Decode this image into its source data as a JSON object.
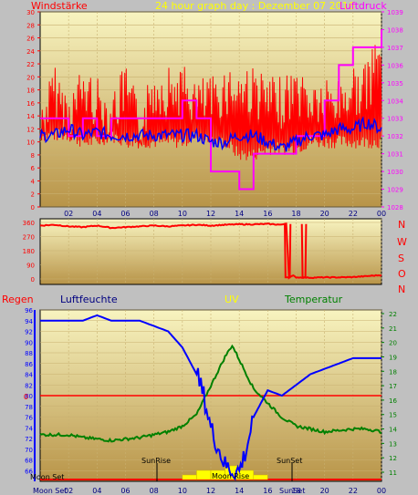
{
  "header": {
    "left_label": "Windstärke",
    "center_label": "24 hour graph day : Dezember 07 2016",
    "right_label": "Luftdruck"
  },
  "direction_letters": [
    "N",
    "W",
    "S",
    "O",
    "N"
  ],
  "lower_header": {
    "regen": "Regen",
    "luftfeuchte": "Luftfeuchte",
    "uv": "UV",
    "temperatur": "Temperatur"
  },
  "annotations": {
    "moon_set_top": "Moon Set",
    "sunrise": "SunRise",
    "moon_rise": "Moon Rise",
    "sunset": "SunSet",
    "moon_set_axis": "Moon Set",
    "sunset_axis": "SunSet"
  },
  "colors": {
    "background": "#c0c0c0",
    "plot_top": "#f8f4c0",
    "plot_bottom": "#b89448",
    "wind": "#ff0000",
    "wind_avg": "#0000ff",
    "pressure": "#ff00ff",
    "direction": "#ff0000",
    "humidity": "#0000ff",
    "temperature": "#008000",
    "rain": "#ff0000",
    "uv": "#ffff00",
    "label_red": "#ff0000",
    "label_blue": "#0000ff",
    "label_yellow": "#ffff00",
    "label_green": "#008000",
    "label_magenta": "#ff00ff",
    "label_navy": "#000080"
  },
  "chart_data": [
    {
      "type": "line",
      "title": "24 hour graph day : Dezember 07 2016",
      "x_ticks": [
        "02",
        "04",
        "06",
        "08",
        "10",
        "12",
        "14",
        "16",
        "18",
        "20",
        "22",
        "00"
      ],
      "y_left_label": "Windstärke",
      "y_left_ticks": [
        0,
        2,
        4,
        6,
        8,
        10,
        12,
        14,
        16,
        18,
        20,
        22,
        24,
        26,
        28,
        30
      ],
      "ylim_left": [
        0,
        30
      ],
      "y_right_label": "Luftdruck",
      "y_right_ticks": [
        1028,
        1029,
        1030,
        1031,
        1032,
        1033,
        1034,
        1035,
        1036,
        1037,
        1038,
        1039
      ],
      "ylim_right": [
        1028,
        1039
      ],
      "series": [
        {
          "name": "Windstärke",
          "axis": "left",
          "x": [
            0,
            1,
            2,
            3,
            4,
            5,
            6,
            7,
            8,
            9,
            10,
            11,
            12,
            13,
            14,
            15,
            16,
            17,
            18,
            19,
            20,
            21,
            22,
            23,
            24
          ],
          "low": [
            10,
            10,
            10,
            9,
            9,
            10,
            9,
            9,
            9,
            9,
            9,
            10,
            9,
            9,
            7,
            7,
            8,
            8,
            8,
            9,
            9,
            9,
            9,
            9,
            9
          ],
          "high": [
            16,
            22,
            18,
            22,
            20,
            18,
            22,
            16,
            22,
            22,
            22,
            20,
            20,
            22,
            22,
            22,
            20,
            20,
            22,
            20,
            20,
            20,
            22,
            22,
            29
          ]
        },
        {
          "name": "Windstärke Mittel",
          "axis": "left",
          "x": [
            0,
            1,
            2,
            3,
            4,
            5,
            6,
            7,
            8,
            9,
            10,
            11,
            12,
            13,
            14,
            15,
            16,
            17,
            18,
            19,
            20,
            21,
            22,
            23,
            24
          ],
          "y": [
            11,
            11,
            12,
            11,
            11.5,
            11,
            11,
            11,
            11,
            11,
            11,
            11,
            10,
            10,
            11,
            11,
            10,
            9,
            10,
            11,
            11,
            12,
            12,
            13,
            12
          ]
        },
        {
          "name": "Luftdruck",
          "axis": "right",
          "x": [
            0,
            1,
            2,
            3,
            4,
            5,
            6,
            7,
            8,
            9,
            10,
            11,
            12,
            13,
            14,
            15,
            16,
            17,
            18,
            19,
            20,
            21,
            22,
            23,
            24
          ],
          "y": [
            1033,
            1033,
            1032,
            1033,
            1032,
            1033,
            1033,
            1033,
            1033,
            1033,
            1034,
            1033,
            1030,
            1030,
            1029,
            1031,
            1031,
            1031,
            1032,
            1032,
            1034,
            1036,
            1037,
            1037,
            1038
          ]
        }
      ]
    },
    {
      "type": "line",
      "y_ticks": [
        0,
        90,
        180,
        270,
        360
      ],
      "ylim": [
        0,
        360
      ],
      "series": [
        {
          "name": "Windrichtung",
          "x": [
            0,
            1,
            2,
            3,
            4,
            5,
            6,
            7,
            8,
            9,
            10,
            11,
            12,
            13,
            14,
            15,
            16,
            17,
            17.3,
            17.5,
            17.8,
            18,
            19,
            20,
            21,
            22,
            23,
            24
          ],
          "y": [
            340,
            345,
            335,
            330,
            340,
            325,
            330,
            335,
            340,
            335,
            340,
            345,
            340,
            345,
            348,
            348,
            350,
            345,
            355,
            10,
            20,
            10,
            8,
            10,
            10,
            12,
            18,
            25
          ]
        }
      ]
    },
    {
      "type": "line",
      "x_ticks": [
        "02",
        "04",
        "06",
        "08",
        "10",
        "12",
        "14",
        "16",
        "18",
        "20",
        "22",
        "00"
      ],
      "y_left_label": "Luftfeuchte",
      "y_left_ticks": [
        66,
        68,
        70,
        72,
        74,
        76,
        78,
        80,
        82,
        84,
        86,
        88,
        90,
        92,
        94,
        96
      ],
      "ylim_left": [
        64,
        96
      ],
      "y_right_label": "Temperatur",
      "y_right_ticks": [
        11,
        12,
        13,
        14,
        15,
        16,
        17,
        18,
        19,
        20,
        21,
        22
      ],
      "ylim_right": [
        11,
        22
      ],
      "rain_label": "Regen",
      "rain_ticks": [
        0
      ],
      "series": [
        {
          "name": "Luftfeuchte",
          "axis": "left",
          "x": [
            0,
            1,
            2,
            3,
            4,
            5,
            6,
            7,
            8,
            9,
            10,
            11,
            11.5,
            12,
            13,
            13.5,
            14,
            14.5,
            15,
            16,
            17,
            18,
            19,
            20,
            21,
            22,
            23,
            24
          ],
          "y": [
            94,
            94,
            94,
            94,
            95,
            94,
            94,
            94,
            93,
            92,
            89,
            84,
            80,
            74,
            67,
            66,
            66,
            70,
            76,
            81,
            80,
            82,
            84,
            85,
            86,
            87,
            87,
            87
          ]
        },
        {
          "name": "Temperatur",
          "axis": "right",
          "x": [
            0,
            1,
            2,
            3,
            4,
            5,
            6,
            7,
            8,
            9,
            10,
            11,
            12,
            13,
            13.5,
            14,
            15,
            16,
            17,
            18,
            19,
            20,
            21,
            22,
            23,
            24
          ],
          "y": [
            13.6,
            13.6,
            13.6,
            13.4,
            13.3,
            13.2,
            13.3,
            13.4,
            13.6,
            13.8,
            14.2,
            15,
            17,
            19,
            19.8,
            18.8,
            16.8,
            15.8,
            14.8,
            14.2,
            14.0,
            13.8,
            13.9,
            14.0,
            14.0,
            13.8
          ]
        },
        {
          "name": "Regen",
          "axis": "rain",
          "x": [
            0,
            24
          ],
          "y": [
            0,
            0
          ]
        },
        {
          "name": "UV",
          "axis": "uv",
          "x": [
            10,
            11,
            12,
            13,
            14,
            15,
            16
          ],
          "y": [
            1,
            2,
            2,
            3,
            2,
            1,
            0
          ]
        }
      ]
    }
  ]
}
